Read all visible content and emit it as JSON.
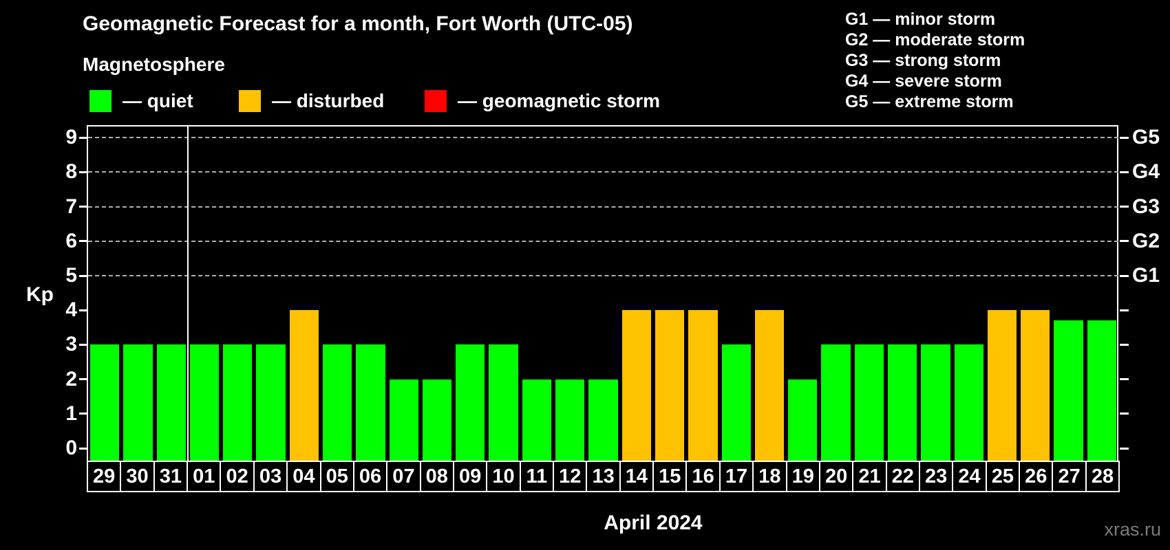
{
  "title": "Geomagnetic Forecast for a month, Fort Worth (UTC-05)",
  "subtitle": "Magnetosphere",
  "legend": {
    "items": [
      {
        "name": "quiet",
        "label": "— quiet",
        "color": "#00ff00"
      },
      {
        "name": "disturbed",
        "label": "— disturbed",
        "color": "#ffc200"
      },
      {
        "name": "geomagnetic-storm",
        "label": "— geomagnetic storm",
        "color": "#ff0000"
      }
    ]
  },
  "storm_scale_legend": [
    "G1 — minor storm",
    "G2 — moderate storm",
    "G3 — strong storm",
    "G4 — severe storm",
    "G5 — extreme storm"
  ],
  "chart_data": {
    "type": "bar",
    "title": "Geomagnetic Forecast for a month, Fort Worth (UTC-05)",
    "ylabel": "Kp",
    "xlabel": "April 2024",
    "ylim": [
      0,
      9
    ],
    "yticks": [
      0,
      1,
      2,
      3,
      4,
      5,
      6,
      7,
      8,
      9
    ],
    "gridlines_at": [
      5,
      6,
      7,
      8,
      9
    ],
    "grid": "dashed horizontal at Kp 5-9 only",
    "legend_position": "top-left",
    "right_axis_labels": [
      {
        "label": "G1",
        "kp": 5
      },
      {
        "label": "G2",
        "kp": 6
      },
      {
        "label": "G3",
        "kp": 7
      },
      {
        "label": "G4",
        "kp": 8
      },
      {
        "label": "G5",
        "kp": 9
      }
    ],
    "month_separator_after_index": 2,
    "categories": [
      "29",
      "30",
      "31",
      "01",
      "02",
      "03",
      "04",
      "05",
      "06",
      "07",
      "08",
      "09",
      "10",
      "11",
      "12",
      "13",
      "14",
      "15",
      "16",
      "17",
      "18",
      "19",
      "20",
      "21",
      "22",
      "23",
      "24",
      "25",
      "26",
      "27",
      "28"
    ],
    "values": [
      3,
      3,
      3,
      3,
      3,
      3,
      4,
      3,
      3,
      2,
      2,
      3,
      3,
      2,
      2,
      2,
      4,
      4,
      4,
      3,
      4,
      2,
      3,
      3,
      3,
      3,
      3,
      4,
      4,
      3.7,
      3.7
    ],
    "statuses": [
      "quiet",
      "quiet",
      "quiet",
      "quiet",
      "quiet",
      "quiet",
      "disturbed",
      "quiet",
      "quiet",
      "quiet",
      "quiet",
      "quiet",
      "quiet",
      "quiet",
      "quiet",
      "quiet",
      "disturbed",
      "disturbed",
      "disturbed",
      "quiet",
      "disturbed",
      "quiet",
      "quiet",
      "quiet",
      "quiet",
      "quiet",
      "quiet",
      "disturbed",
      "disturbed",
      "quiet",
      "quiet"
    ],
    "status_colors": {
      "quiet": "#00ff00",
      "disturbed": "#ffc200",
      "storm": "#ff0000"
    }
  },
  "colors": {
    "background": "#000000",
    "axis": "#ffffff",
    "gridline": "#b0b0b0",
    "watermark": "#7b7b7b"
  },
  "watermark": "xras.ru"
}
